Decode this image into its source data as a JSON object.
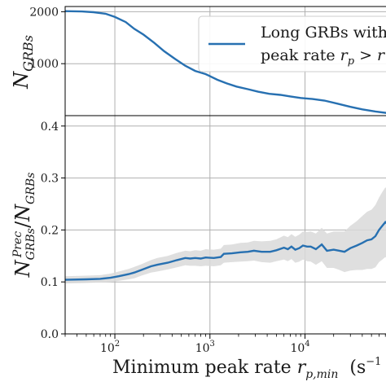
{
  "chart_data": [
    {
      "type": "line",
      "panel": "top",
      "x_scale": "log",
      "xlim": [
        30,
        80000
      ],
      "ylim": [
        0,
        2100
      ],
      "grid": true,
      "ylabel_math": [
        "N",
        "GRBs"
      ],
      "yticks": [
        {
          "value": 1000,
          "label": "1000"
        },
        {
          "value": 2000,
          "label": "2000"
        }
      ],
      "legend": {
        "placement": "top-right",
        "line1": "Long GRBs with",
        "line2_text": "peak rate ",
        "line2_r": "r",
        "line2_p": "p",
        "line2_gt": " > ",
        "line2_r2": "r"
      },
      "series": [
        {
          "name": "Long GRBs with peak rate r_p > r",
          "color": "#2770b1",
          "x": [
            30,
            45,
            60,
            80,
            100,
            130,
            160,
            200,
            260,
            330,
            430,
            550,
            700,
            900,
            1200,
            1500,
            1900,
            2500,
            3200,
            4200,
            5500,
            7000,
            9000,
            12000,
            16000,
            22000,
            30000,
            40000,
            55000,
            80000
          ],
          "y": [
            2010,
            2005,
            1990,
            1960,
            1900,
            1800,
            1670,
            1560,
            1400,
            1240,
            1090,
            960,
            860,
            800,
            690,
            620,
            560,
            510,
            460,
            420,
            400,
            370,
            340,
            320,
            290,
            230,
            170,
            120,
            80,
            40
          ]
        }
      ]
    },
    {
      "type": "line",
      "panel": "bottom",
      "x_scale": "log",
      "xlim": [
        30,
        80000
      ],
      "ylim": [
        0,
        0.42
      ],
      "grid": true,
      "ylabel_math": [
        "N",
        "GRBs",
        "Prec",
        "N",
        "GRBs"
      ],
      "xlabel_prefix": "Minimum peak rate ",
      "xlabel_r": "r",
      "xlabel_sub": "p,min",
      "xlabel_unit": "(s",
      "xlabel_unit_exp": "−1",
      "xticks": [
        {
          "value": 100,
          "base": "10",
          "exp": "2"
        },
        {
          "value": 1000,
          "base": "10",
          "exp": "3"
        },
        {
          "value": 10000,
          "base": "10",
          "exp": "4"
        }
      ],
      "yticks": [
        {
          "value": 0.0,
          "label": "0.0"
        },
        {
          "value": 0.1,
          "label": "0.1"
        },
        {
          "value": 0.2,
          "label": "0.2"
        },
        {
          "value": 0.3,
          "label": "0.3"
        },
        {
          "value": 0.4,
          "label": "0.4"
        }
      ],
      "series": [
        {
          "name": "",
          "color": "#2770b1",
          "band_color": "#d9d9d9",
          "x": [
            30,
            50,
            70,
            90,
            110,
            140,
            160,
            190,
            240,
            280,
            360,
            450,
            550,
            620,
            700,
            800,
            900,
            1100,
            1300,
            1400,
            1700,
            2100,
            2500,
            2900,
            3500,
            4300,
            5000,
            6000,
            6600,
            7200,
            7900,
            8700,
            9500,
            10500,
            11500,
            13000,
            15000,
            17000,
            20000,
            23000,
            26000,
            30000,
            35000,
            40000,
            45000,
            50000,
            55000,
            60000,
            65000,
            70000,
            75000,
            80000
          ],
          "y": [
            0.104,
            0.105,
            0.106,
            0.108,
            0.111,
            0.115,
            0.118,
            0.123,
            0.13,
            0.133,
            0.137,
            0.142,
            0.146,
            0.145,
            0.146,
            0.145,
            0.147,
            0.146,
            0.148,
            0.154,
            0.155,
            0.157,
            0.158,
            0.16,
            0.158,
            0.158,
            0.161,
            0.166,
            0.163,
            0.168,
            0.162,
            0.165,
            0.17,
            0.168,
            0.168,
            0.163,
            0.172,
            0.16,
            0.162,
            0.16,
            0.158,
            0.165,
            0.17,
            0.175,
            0.18,
            0.182,
            0.188,
            0.2,
            0.208,
            0.215,
            0.21,
            0.212
          ],
          "lower": [
            0.097,
            0.098,
            0.099,
            0.1,
            0.102,
            0.105,
            0.107,
            0.112,
            0.118,
            0.12,
            0.124,
            0.128,
            0.132,
            0.131,
            0.131,
            0.13,
            0.131,
            0.13,
            0.132,
            0.137,
            0.138,
            0.139,
            0.14,
            0.141,
            0.138,
            0.137,
            0.14,
            0.143,
            0.14,
            0.144,
            0.137,
            0.139,
            0.143,
            0.14,
            0.139,
            0.133,
            0.14,
            0.127,
            0.127,
            0.123,
            0.119,
            0.122,
            0.123,
            0.123,
            0.125,
            0.125,
            0.128,
            0.138,
            0.143,
            0.148,
            0.143,
            0.144
          ],
          "upper": [
            0.111,
            0.112,
            0.113,
            0.116,
            0.12,
            0.125,
            0.129,
            0.134,
            0.142,
            0.146,
            0.15,
            0.156,
            0.16,
            0.159,
            0.161,
            0.16,
            0.163,
            0.162,
            0.164,
            0.171,
            0.172,
            0.175,
            0.176,
            0.179,
            0.178,
            0.179,
            0.182,
            0.189,
            0.186,
            0.192,
            0.187,
            0.191,
            0.197,
            0.196,
            0.197,
            0.193,
            0.204,
            0.193,
            0.197,
            0.197,
            0.197,
            0.208,
            0.217,
            0.227,
            0.235,
            0.239,
            0.248,
            0.262,
            0.273,
            0.282,
            0.277,
            0.28
          ]
        }
      ]
    }
  ]
}
